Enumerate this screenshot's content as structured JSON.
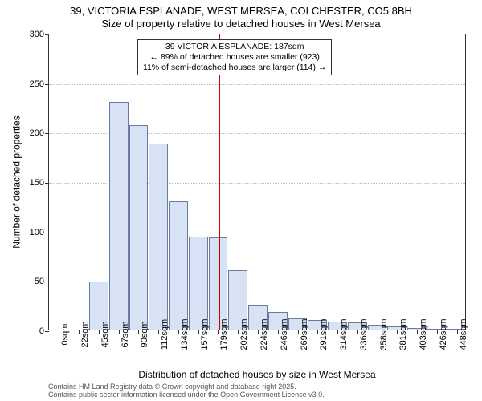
{
  "title": "39, VICTORIA ESPLANADE, WEST MERSEA, COLCHESTER, CO5 8BH",
  "subtitle": "Size of property relative to detached houses in West Mersea",
  "ylabel": "Number of detached properties",
  "xlabel": "Distribution of detached houses by size in West Mersea",
  "footer_line1": "Contains HM Land Registry data © Crown copyright and database right 2025.",
  "footer_line2": "Contains public sector information licensed under the Open Government Licence v3.0.",
  "chart": {
    "type": "histogram",
    "ylim": [
      0,
      300
    ],
    "ytick_step": 50,
    "xlim": [
      0,
      460
    ],
    "x_categories": [
      "0sqm",
      "22sqm",
      "45sqm",
      "67sqm",
      "90sqm",
      "112sqm",
      "134sqm",
      "157sqm",
      "179sqm",
      "202sqm",
      "224sqm",
      "246sqm",
      "269sqm",
      "291sqm",
      "314sqm",
      "336sqm",
      "358sqm",
      "381sqm",
      "403sqm",
      "426sqm",
      "448sqm"
    ],
    "bar_values": [
      0,
      0,
      49,
      230,
      207,
      188,
      130,
      94,
      93,
      60,
      25,
      18,
      11,
      10,
      8,
      7,
      5,
      3,
      2,
      1,
      1
    ],
    "bar_fill": "#d7e3f4",
    "bar_stroke": "#6b7aa1",
    "background_color": "#ffffff",
    "grid_color": "#bfbfbf",
    "axis_color": "#333333",
    "marker": {
      "x_value": 187,
      "color": "#d60000"
    },
    "annotation": {
      "line1": "39 VICTORIA ESPLANADE: 187sqm",
      "line2": "← 89% of detached houses are smaller (923)",
      "line3": "11% of semi-detached houses are larger (114) →"
    },
    "title_fontsize": 13,
    "label_fontsize": 12,
    "tick_fontsize": 11
  }
}
